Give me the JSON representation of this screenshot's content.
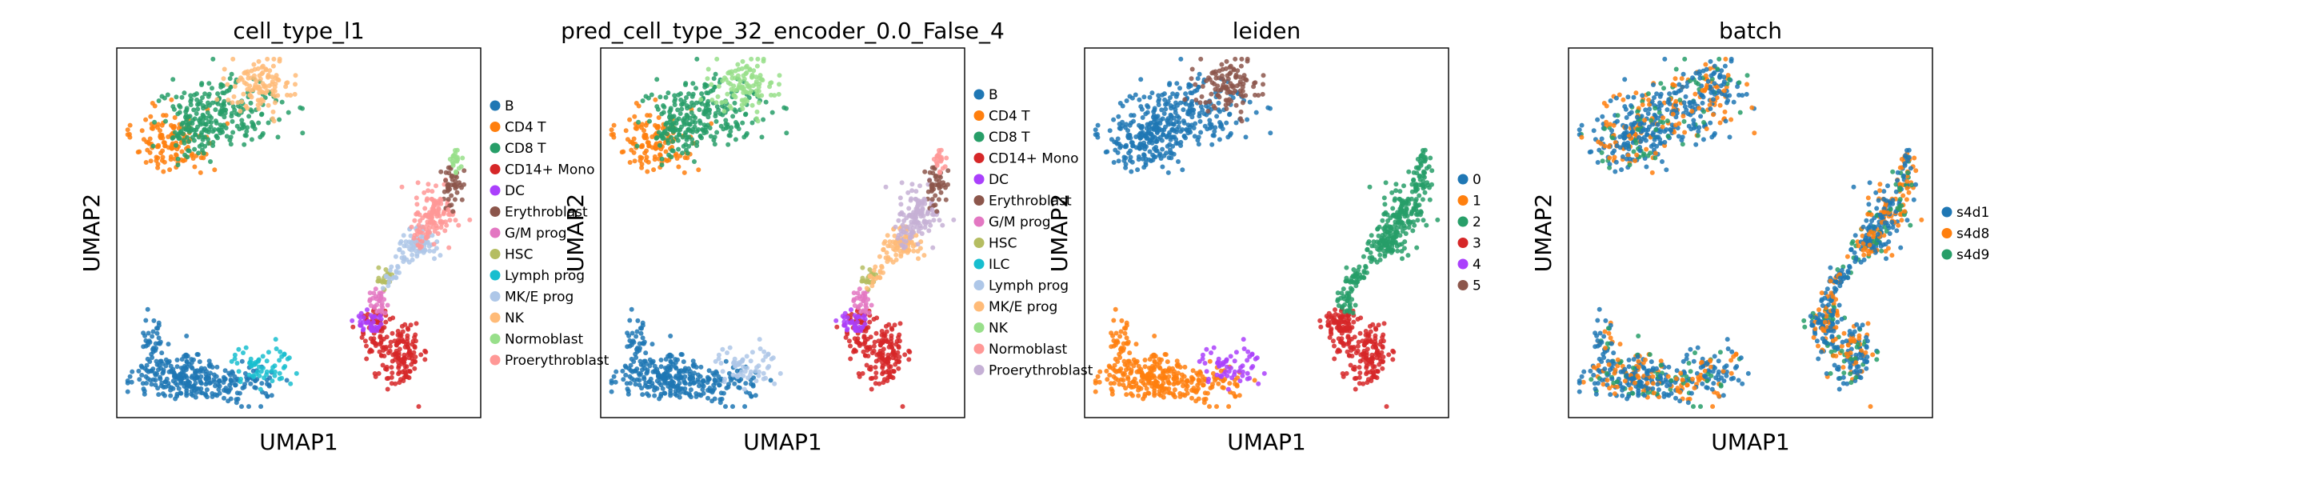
{
  "chart_data": [
    {
      "type": "scatter",
      "title": "cell_type_l1",
      "xlabel": "UMAP1",
      "ylabel": "UMAP2",
      "legend_placement": "right",
      "legend": [
        {
          "label": "B",
          "color": "#1f77b4"
        },
        {
          "label": "CD4 T",
          "color": "#ff7f0e"
        },
        {
          "label": "CD8 T",
          "color": "#279e68"
        },
        {
          "label": "CD14+ Mono",
          "color": "#d62728"
        },
        {
          "label": "DC",
          "color": "#aa40fc"
        },
        {
          "label": "Erythroblast",
          "color": "#8c564b"
        },
        {
          "label": "G/M prog",
          "color": "#e377c2"
        },
        {
          "label": "HSC",
          "color": "#b5bd61"
        },
        {
          "label": "Lymph prog",
          "color": "#17becf"
        },
        {
          "label": "MK/E prog",
          "color": "#aec7e8"
        },
        {
          "label": "NK",
          "color": "#ffbb78"
        },
        {
          "label": "Normoblast",
          "color": "#98df8a"
        },
        {
          "label": "Proerythroblast",
          "color": "#ff9896"
        }
      ]
    },
    {
      "type": "scatter",
      "title": "pred_cell_type_32_encoder_0.0_False_4",
      "xlabel": "UMAP1",
      "ylabel": "UMAP2",
      "legend_placement": "right",
      "legend": [
        {
          "label": "B",
          "color": "#1f77b4"
        },
        {
          "label": "CD4 T",
          "color": "#ff7f0e"
        },
        {
          "label": "CD8 T",
          "color": "#279e68"
        },
        {
          "label": "CD14+ Mono",
          "color": "#d62728"
        },
        {
          "label": "DC",
          "color": "#aa40fc"
        },
        {
          "label": "Erythroblast",
          "color": "#8c564b"
        },
        {
          "label": "G/M prog",
          "color": "#e377c2"
        },
        {
          "label": "HSC",
          "color": "#b5bd61"
        },
        {
          "label": "ILC",
          "color": "#17becf"
        },
        {
          "label": "Lymph prog",
          "color": "#aec7e8"
        },
        {
          "label": "MK/E prog",
          "color": "#ffbb78"
        },
        {
          "label": "NK",
          "color": "#98df8a"
        },
        {
          "label": "Normoblast",
          "color": "#ff9896"
        },
        {
          "label": "Proerythroblast",
          "color": "#c5b0d5"
        }
      ]
    },
    {
      "type": "scatter",
      "title": "leiden",
      "xlabel": "UMAP1",
      "ylabel": "UMAP2",
      "legend_placement": "right",
      "legend": [
        {
          "label": "0",
          "color": "#1f77b4"
        },
        {
          "label": "1",
          "color": "#ff7f0e"
        },
        {
          "label": "2",
          "color": "#279e68"
        },
        {
          "label": "3",
          "color": "#d62728"
        },
        {
          "label": "4",
          "color": "#aa40fc"
        },
        {
          "label": "5",
          "color": "#8c564b"
        }
      ]
    },
    {
      "type": "scatter",
      "title": "batch",
      "xlabel": "UMAP1",
      "ylabel": "UMAP2",
      "legend_placement": "right",
      "legend": [
        {
          "label": "s4d1",
          "color": "#1f77b4"
        },
        {
          "label": "s4d8",
          "color": "#ff7f0e"
        },
        {
          "label": "s4d9",
          "color": "#279e68"
        }
      ]
    }
  ]
}
